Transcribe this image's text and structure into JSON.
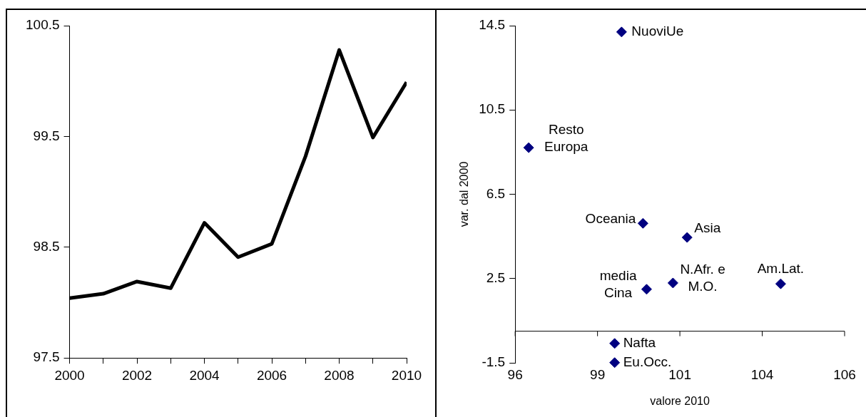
{
  "chart_data": [
    {
      "type": "line",
      "x": [
        2000,
        2001,
        2002,
        2003,
        2004,
        2005,
        2006,
        2007,
        2008,
        2009,
        2010
      ],
      "series": [
        {
          "color": "#000000",
          "values": [
            98.04,
            98.08,
            98.19,
            98.13,
            98.72,
            98.41,
            98.53,
            99.32,
            100.28,
            99.49,
            99.99
          ]
        }
      ],
      "xlim": [
        2000,
        2010
      ],
      "xticks": [
        2000,
        {
          "value": 2001,
          "label": null
        },
        2002,
        {
          "value": 2003,
          "label": null
        },
        2004,
        {
          "value": 2005,
          "label": null
        },
        2006,
        {
          "value": 2007,
          "label": null
        },
        2008,
        {
          "value": 2009,
          "label": null
        },
        2010
      ],
      "ylim": [
        97.5,
        100.5
      ],
      "yticks": [
        97.5,
        98.5,
        99.5,
        100.5
      ],
      "grid": false,
      "legend": false,
      "marker": "none",
      "line_style": "solid"
    },
    {
      "type": "scatter",
      "xlabel": "valore 2010",
      "ylabel": "var. dal 2000",
      "x": [
        99.23,
        96.41,
        99.88,
        101.22,
        99.99,
        100.79,
        104.06,
        99.02,
        99.02
      ],
      "series": [
        {
          "color": "#000080",
          "values": [
            14.2,
            8.71,
            5.12,
            4.45,
            1.99,
            2.29,
            2.25,
            -0.58,
            -1.49
          ]
        }
      ],
      "xlim": [
        96,
        106
      ],
      "xticks": [
        96,
        {
          "value": 98.5,
          "label": "99"
        },
        101,
        {
          "value": 103.5,
          "label": "104"
        },
        106
      ],
      "ylim": [
        -1.5,
        14.5
      ],
      "yticks": [
        -1.5,
        2.5,
        6.5,
        10.5,
        14.5
      ],
      "grid": false,
      "legend": false,
      "marker": "diamond",
      "annotations": [
        {
          "text": "NuoviUe",
          "x": 99.23,
          "y": 14.2
        },
        {
          "text": "Resto\nEuropa",
          "x": 96.41,
          "y": 8.71
        },
        {
          "text": "Oceania",
          "x": 99.88,
          "y": 5.12
        },
        {
          "text": "Asia",
          "x": 101.22,
          "y": 4.45
        },
        {
          "text": "media\nCina",
          "x": 99.99,
          "y": 1.99
        },
        {
          "text": "N.Afr. e\nM.O.",
          "x": 100.79,
          "y": 2.29
        },
        {
          "text": "Am.Lat.",
          "x": 104.06,
          "y": 2.25
        },
        {
          "text": "Nafta",
          "x": 99.02,
          "y": -0.58
        },
        {
          "text": "Eu.Occ.",
          "x": 99.02,
          "y": -1.49
        }
      ]
    }
  ]
}
